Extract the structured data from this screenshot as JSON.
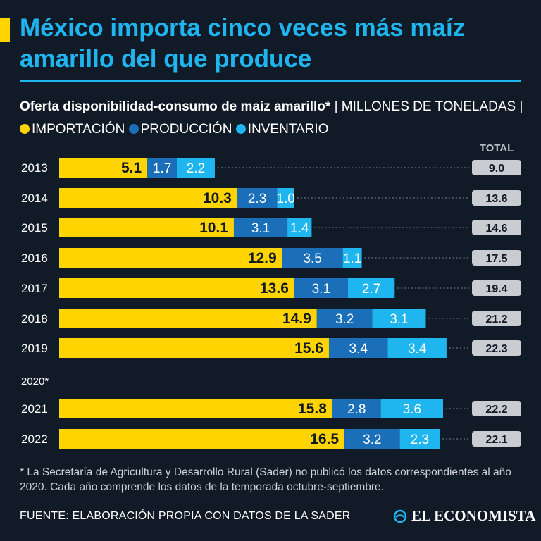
{
  "title": "México importa cinco veces más maíz amarillo del que produce",
  "subtitle_bold": "Oferta disponibilidad-consumo de maíz amarillo*",
  "subtitle_unit": " | MILLONES DE TONELADAS | ",
  "legend": [
    {
      "label": "IMPORTACIÓN",
      "color": "#ffd400"
    },
    {
      "label": "PRODUCCIÓN",
      "color": "#1a6fb8"
    },
    {
      "label": "INVENTARIO",
      "color": "#1fb5ef"
    }
  ],
  "total_header": "TOTAL",
  "chart_data": {
    "type": "bar",
    "orientation": "horizontal",
    "stacked": true,
    "title": "Oferta disponibilidad-consumo de maíz amarillo*",
    "unit": "MILLONES DE TONELADAS",
    "categories": [
      "2013",
      "2014",
      "2015",
      "2016",
      "2017",
      "2018",
      "2019",
      "2020*",
      "2021",
      "2022"
    ],
    "series": [
      {
        "name": "IMPORTACIÓN",
        "color": "#ffd400",
        "values": [
          5.1,
          10.3,
          10.1,
          12.9,
          13.6,
          14.9,
          15.6,
          null,
          15.8,
          16.5
        ]
      },
      {
        "name": "PRODUCCIÓN",
        "color": "#1a6fb8",
        "values": [
          1.7,
          2.3,
          3.1,
          3.5,
          3.1,
          3.2,
          3.4,
          null,
          2.8,
          3.2
        ]
      },
      {
        "name": "INVENTARIO",
        "color": "#1fb5ef",
        "values": [
          2.2,
          1.0,
          1.4,
          1.1,
          2.7,
          3.1,
          3.4,
          null,
          3.6,
          2.3
        ]
      }
    ],
    "labels": [
      [
        "5.1",
        "1.7",
        "2.2"
      ],
      [
        "10.3",
        "2.3",
        "1.0"
      ],
      [
        "10.1",
        "3.1",
        "1.4"
      ],
      [
        "12.9",
        "3.5",
        "1.1"
      ],
      [
        "13.6",
        "3.1",
        "2.7"
      ],
      [
        "14.9",
        "3.2",
        "3.1"
      ],
      [
        "15.6",
        "3.4",
        "3.4"
      ],
      null,
      [
        "15.8",
        "2.8",
        "3.6"
      ],
      [
        "16.5",
        "3.2",
        "2.3"
      ]
    ],
    "totals": [
      "9.0",
      "13.6",
      "14.6",
      "17.5",
      "19.4",
      "21.2",
      "22.3",
      null,
      "22.2",
      "22.1"
    ]
  },
  "footnote": "* La Secretaría de Agricultura y Desarrollo Rural (Sader) no publicó los datos correspondientes al año 2020. Cada año comprende los datos de la temporada octubre-septiembre.",
  "source": "FUENTE: ELABORACIÓN PROPIA CON DATOS DE LA SADER",
  "logo_text": "EL ECONOMISTA"
}
